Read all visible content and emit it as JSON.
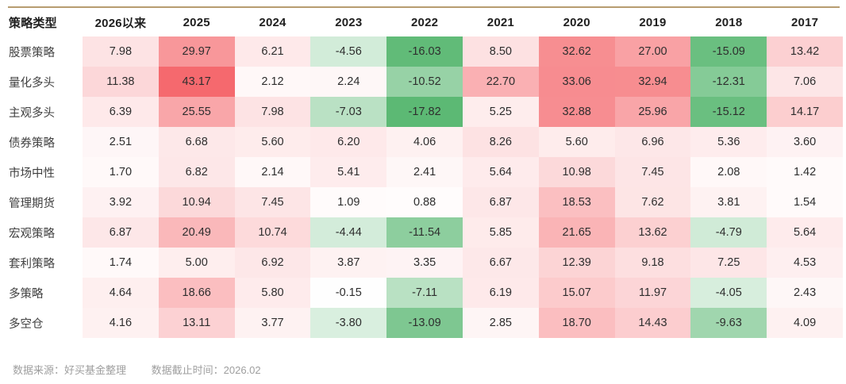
{
  "divider_color": "#b79c70",
  "heatmap": {
    "positive_max": 43.17,
    "negative_max": 16.5,
    "positive_color": "#f5696e",
    "negative_color": "#5cb974",
    "base_color": "#ffffff"
  },
  "table": {
    "columns": [
      "策略类型",
      "2026以来",
      "2025",
      "2024",
      "2023",
      "2022",
      "2021",
      "2020",
      "2019",
      "2018",
      "2017"
    ],
    "rows": [
      {
        "label": "股票策略",
        "values": [
          "7.98",
          "29.97",
          "6.21",
          "-4.56",
          "-16.03",
          "8.50",
          "32.62",
          "27.00",
          "-15.09",
          "13.42"
        ]
      },
      {
        "label": "量化多头",
        "values": [
          "11.38",
          "43.17",
          "2.12",
          "2.24",
          "-10.52",
          "22.70",
          "33.06",
          "32.94",
          "-12.31",
          "7.06"
        ]
      },
      {
        "label": "主观多头",
        "values": [
          "6.39",
          "25.55",
          "7.98",
          "-7.03",
          "-17.82",
          "5.25",
          "32.88",
          "25.96",
          "-15.12",
          "14.17"
        ]
      },
      {
        "label": "债券策略",
        "values": [
          "2.51",
          "6.68",
          "5.60",
          "6.20",
          "4.06",
          "8.26",
          "5.60",
          "6.96",
          "5.36",
          "3.60"
        ]
      },
      {
        "label": "市场中性",
        "values": [
          "1.70",
          "6.82",
          "2.14",
          "5.41",
          "2.41",
          "5.64",
          "10.98",
          "7.45",
          "2.08",
          "1.42"
        ]
      },
      {
        "label": "管理期货",
        "values": [
          "3.92",
          "10.94",
          "7.45",
          "1.09",
          "0.88",
          "6.87",
          "18.53",
          "7.62",
          "3.81",
          "1.54"
        ]
      },
      {
        "label": "宏观策略",
        "values": [
          "6.87",
          "20.49",
          "10.74",
          "-4.44",
          "-11.54",
          "5.85",
          "21.65",
          "13.62",
          "-4.79",
          "5.64"
        ]
      },
      {
        "label": "套利策略",
        "values": [
          "1.74",
          "5.00",
          "6.92",
          "3.87",
          "3.35",
          "6.67",
          "12.39",
          "9.18",
          "7.25",
          "4.53"
        ]
      },
      {
        "label": "多策略",
        "values": [
          "4.64",
          "18.66",
          "5.80",
          "-0.15",
          "-7.11",
          "6.19",
          "15.07",
          "11.97",
          "-4.05",
          "2.43"
        ]
      },
      {
        "label": "多空仓",
        "values": [
          "4.16",
          "13.11",
          "3.77",
          "-3.80",
          "-13.09",
          "2.85",
          "18.70",
          "14.43",
          "-9.63",
          "4.09"
        ]
      }
    ]
  },
  "footer": {
    "source": "数据来源：好买基金整理",
    "cutoff": "数据截止时间：2026.02"
  }
}
